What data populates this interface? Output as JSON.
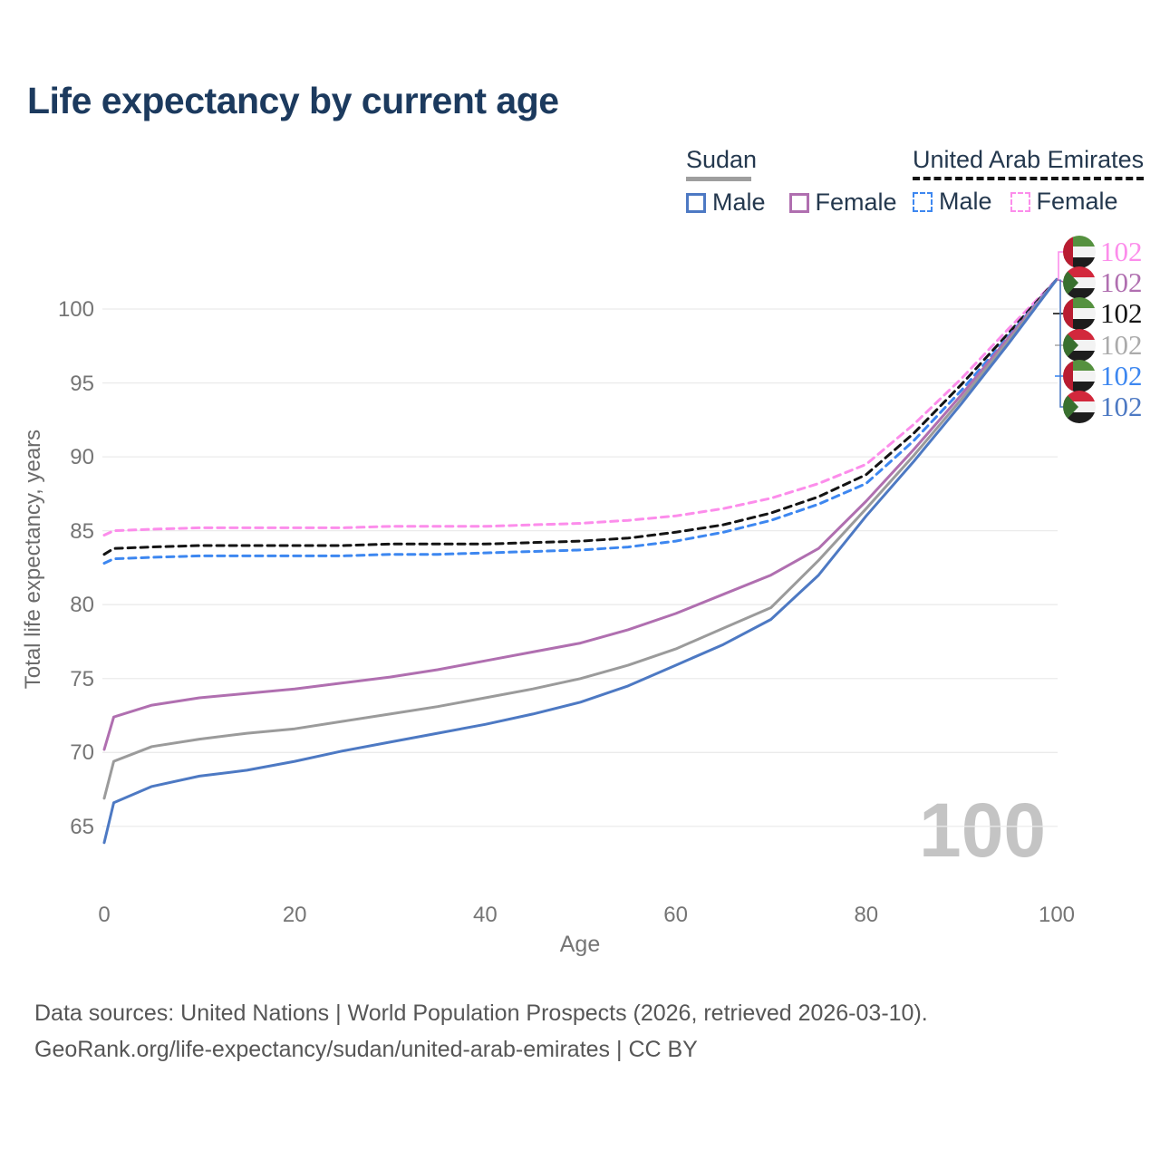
{
  "title": "Life expectancy by current age",
  "legend": {
    "groups": [
      {
        "name": "Sudan",
        "underline_style": "solid",
        "underline_color": "#9e9e9e",
        "items": [
          {
            "label": "Male",
            "color": "#4d79c3",
            "dashed": false
          },
          {
            "label": "Female",
            "color": "#b06fb0",
            "dashed": false
          }
        ]
      },
      {
        "name": "United Arab Emirates",
        "underline_style": "dashed",
        "underline_color": "#141414",
        "items": [
          {
            "label": "Male",
            "color": "#3d87f0",
            "dashed": true
          },
          {
            "label": "Female",
            "color": "#fc8deb",
            "dashed": true
          }
        ]
      }
    ]
  },
  "chart_data": {
    "type": "line",
    "title": "Life expectancy by current age",
    "xlabel": "Age",
    "ylabel": "Total life expectancy, years",
    "x_ticks": [
      0,
      20,
      40,
      60,
      80,
      100
    ],
    "y_ticks": [
      65,
      70,
      75,
      80,
      85,
      90,
      95,
      100
    ],
    "xlim": [
      0,
      100
    ],
    "ylim": [
      63.5,
      103
    ],
    "grid": "horizontal",
    "legend_position": "top-right",
    "age_indicator": "100",
    "ages": [
      0,
      1,
      5,
      10,
      15,
      20,
      25,
      30,
      35,
      40,
      45,
      50,
      55,
      60,
      65,
      70,
      75,
      80,
      85,
      90,
      95,
      100
    ],
    "series": [
      {
        "name": "United Arab Emirates Female",
        "country": "United Arab Emirates",
        "sex": "Female",
        "color": "#fc8deb",
        "dashed": true,
        "values": [
          84.7,
          85.0,
          85.1,
          85.2,
          85.2,
          85.2,
          85.2,
          85.3,
          85.3,
          85.3,
          85.4,
          85.5,
          85.7,
          86.0,
          86.5,
          87.2,
          88.2,
          89.5,
          92.2,
          95.3,
          98.7,
          102
        ]
      },
      {
        "name": "United Arab Emirates Total",
        "country": "United Arab Emirates",
        "sex": "Both",
        "color": "#141414",
        "dashed": true,
        "values": [
          83.4,
          83.8,
          83.9,
          84.0,
          84.0,
          84.0,
          84.0,
          84.1,
          84.1,
          84.1,
          84.2,
          84.3,
          84.5,
          84.9,
          85.4,
          86.2,
          87.3,
          88.8,
          91.6,
          94.9,
          98.4,
          102
        ]
      },
      {
        "name": "United Arab Emirates Male",
        "country": "United Arab Emirates",
        "sex": "Male",
        "color": "#3d87f0",
        "dashed": true,
        "values": [
          82.8,
          83.1,
          83.2,
          83.3,
          83.3,
          83.3,
          83.3,
          83.4,
          83.4,
          83.5,
          83.6,
          83.7,
          83.9,
          84.3,
          84.9,
          85.7,
          86.8,
          88.2,
          91.1,
          94.5,
          98.2,
          102
        ]
      },
      {
        "name": "Sudan Female",
        "country": "Sudan",
        "sex": "Female",
        "color": "#b06fb0",
        "dashed": false,
        "values": [
          70.2,
          72.4,
          73.2,
          73.7,
          74.0,
          74.3,
          74.7,
          75.1,
          75.6,
          76.2,
          76.8,
          77.4,
          78.3,
          79.4,
          80.7,
          82.0,
          83.8,
          87.0,
          90.5,
          94.2,
          98.1,
          102
        ]
      },
      {
        "name": "Sudan Total",
        "country": "Sudan",
        "sex": "Both",
        "color": "#9b9b9b",
        "dashed": false,
        "values": [
          66.9,
          69.4,
          70.4,
          70.9,
          71.3,
          71.6,
          72.1,
          72.6,
          73.1,
          73.7,
          74.3,
          75.0,
          75.9,
          77.0,
          78.4,
          79.8,
          83.0,
          86.5,
          90.1,
          93.9,
          97.9,
          102
        ]
      },
      {
        "name": "Sudan Male",
        "country": "Sudan",
        "sex": "Male",
        "color": "#4d79c3",
        "dashed": false,
        "values": [
          63.9,
          66.6,
          67.7,
          68.4,
          68.8,
          69.4,
          70.1,
          70.7,
          71.3,
          71.9,
          72.6,
          73.4,
          74.5,
          75.9,
          77.3,
          79.0,
          82.0,
          86.0,
          89.7,
          93.6,
          97.7,
          102
        ]
      }
    ],
    "end_labels": [
      {
        "value": "102",
        "flag": "uae",
        "color": "#fc8deb",
        "series": "United Arab Emirates Female"
      },
      {
        "value": "102",
        "flag": "sudan",
        "color": "#b06fb0",
        "series": "Sudan Female"
      },
      {
        "value": "102",
        "flag": "uae",
        "color": "#141414",
        "series": "United Arab Emirates Total"
      },
      {
        "value": "102",
        "flag": "sudan",
        "color": "#ababab",
        "series": "Sudan Total"
      },
      {
        "value": "102",
        "flag": "uae",
        "color": "#3d87f0",
        "series": "United Arab Emirates Male"
      },
      {
        "value": "102",
        "flag": "sudan",
        "color": "#4d79c3",
        "series": "Sudan Male"
      }
    ]
  },
  "footer": {
    "line1": "Data sources: United Nations | World Population Prospects (2026, retrieved 2026-03-10).",
    "line2": "GeoRank.org/life-expectancy/sudan/united-arab-emirates | CC BY"
  }
}
